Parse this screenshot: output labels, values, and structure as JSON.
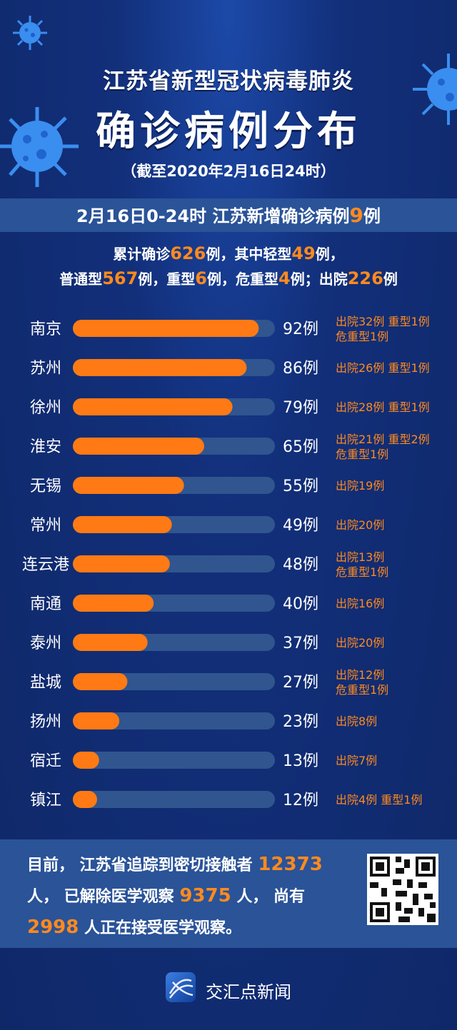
{
  "header": {
    "title_line1": "江苏省新型冠状病毒肺炎",
    "title_line2": "确诊病例分布",
    "title_line3": "（截至2020年2月16日24时）"
  },
  "band": {
    "prefix": "2月16日0-24时   江苏新增确诊病例",
    "number": "9",
    "suffix": "例"
  },
  "summary": {
    "l1_a": "累计确诊",
    "total": "626",
    "l1_b": "例，其中轻型",
    "mild": "49",
    "l1_c": "例，",
    "l2_a": "普通型",
    "common": "567",
    "l2_b": "例，重型",
    "severe": "6",
    "l2_c": "例，危重型",
    "critical": "4",
    "l2_d": "例；出院",
    "discharged": "226",
    "l2_e": "例"
  },
  "chart_data": {
    "type": "bar",
    "orientation": "horizontal",
    "unit": "例",
    "xlim": [
      0,
      100
    ],
    "categories": [
      "南京",
      "苏州",
      "徐州",
      "淮安",
      "无锡",
      "常州",
      "连云港",
      "南通",
      "泰州",
      "盐城",
      "扬州",
      "宿迁",
      "镇江"
    ],
    "values": [
      92,
      86,
      79,
      65,
      55,
      49,
      48,
      40,
      37,
      27,
      23,
      13,
      12
    ],
    "value_labels": [
      "92例",
      "86例",
      "79例",
      "65例",
      "55例",
      "49例",
      "48例",
      "40例",
      "37例",
      "27例",
      "23例",
      "13例",
      "12例"
    ],
    "notes": [
      [
        "出院32例 重型1例",
        "危重型1例"
      ],
      [
        "出院26例 重型1例"
      ],
      [
        "出院28例 重型1例"
      ],
      [
        "出院21例 重型2例",
        "危重型1例"
      ],
      [
        "出院19例"
      ],
      [
        "出院20例"
      ],
      [
        "出院13例",
        "危重型1例"
      ],
      [
        "出院16例"
      ],
      [
        "出院20例"
      ],
      [
        "出院12例",
        "危重型1例"
      ],
      [
        "出院8例"
      ],
      [
        "出院7例"
      ],
      [
        "出院4例  重型1例"
      ]
    ],
    "colors": {
      "bar": "#ff7a14",
      "track": "#30558f",
      "note": "#ff8a1e",
      "label": "#ffffff"
    }
  },
  "footer": {
    "t1": "目前，  江苏省追踪到密切接触者 ",
    "n1": "12373",
    "t2": "人，  已解除医学观察 ",
    "n2": "9375",
    "t3": " 人，  尚有",
    "n3": "2998",
    "t4": " 人正在接受医学观察。",
    "logo_text": "交汇点新闻"
  }
}
